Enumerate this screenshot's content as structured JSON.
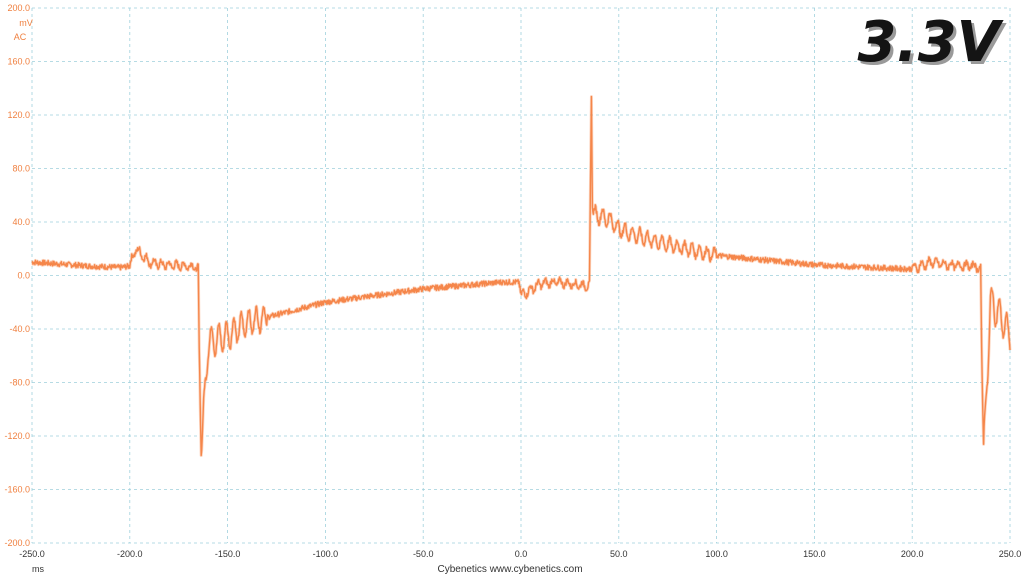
{
  "chart_data": {
    "type": "line",
    "title": "3.3V",
    "xlabel": "ms",
    "ylabel_unit": "mV",
    "ylabel_coupling": "AC",
    "footer": "Cybenetics   www.cybenetics.com",
    "xlim": [
      -250,
      250
    ],
    "ylim": [
      -200,
      200
    ],
    "x_ticks": [
      "-250.0",
      "-200.0",
      "-150.0",
      "-100.0",
      "-50.0",
      "0.0",
      "50.0",
      "100.0",
      "150.0",
      "200.0",
      "250.0"
    ],
    "y_ticks": [
      "200.0",
      "160.0",
      "120.0",
      "80.0",
      "40.0",
      "0.0",
      "-40.0",
      "-80.0",
      "-120.0",
      "-160.0",
      "-200.0"
    ],
    "grid": true,
    "series": [
      {
        "color": "#f5864a",
        "x": [
          -250,
          -220,
          -205,
          -200,
          -197,
          -190,
          -183,
          -168,
          -165,
          -164.5,
          -163.5,
          -160,
          -150,
          -140,
          -100,
          -50,
          -10,
          -1,
          0,
          10,
          18,
          35,
          36,
          36.5,
          37.5,
          40,
          45,
          50,
          55,
          70,
          100,
          150,
          180,
          195,
          200,
          210,
          217,
          232,
          235,
          235.5,
          236.5,
          240,
          245,
          250
        ],
        "y": [
          10,
          7,
          6,
          7,
          20,
          10,
          8,
          7,
          5,
          -55,
          -135,
          -50,
          -45,
          -35,
          -20,
          -10,
          -5,
          -5,
          -15,
          -6,
          -5,
          -8,
          135,
          50,
          45,
          45,
          42,
          35,
          32,
          25,
          15,
          8,
          6,
          5,
          5,
          10,
          8,
          7,
          5,
          -55,
          -135,
          -20,
          -30,
          -45
        ]
      }
    ]
  }
}
